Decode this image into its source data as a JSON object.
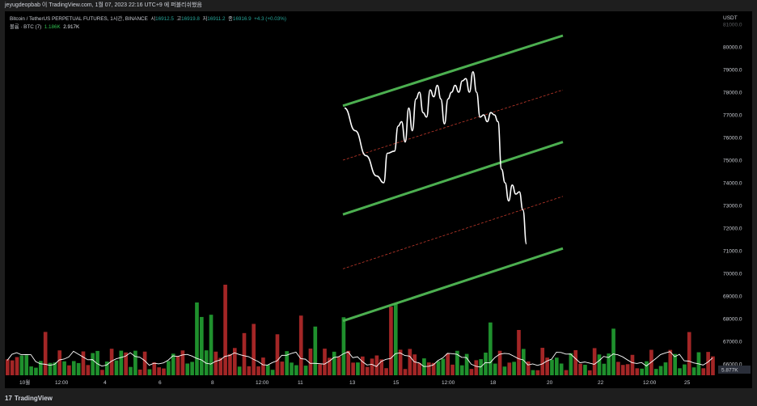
{
  "header": {
    "publisher_line": "jeyugdeopbab 이 TradingView.com, 1월 07, 2023 22:16 UTC+9 에 퍼블리쉬했음"
  },
  "legend": {
    "symbol": "Bitcoin / TetherUS PERPETUAL FUTURES, 1시간, BINANCE",
    "open_label": "시",
    "open": "16912.5",
    "high_label": "고",
    "high": "16919.8",
    "low_label": "저",
    "low": "16911.2",
    "close_label": "종",
    "close": "16916.9",
    "change": "+4.3 (+0.03%)",
    "volume_label": "볼륨 · BTC (7)",
    "volume_value": "1.186K",
    "volume_ma": "2.917K"
  },
  "footer": {
    "brand": "TradingView",
    "brand_mark": "17"
  },
  "chart_data": {
    "type": "line",
    "currency": "USDT",
    "y_ticks": [
      "81000.0",
      "80000.0",
      "79000.0",
      "78000.0",
      "77000.0",
      "76000.0",
      "75000.0",
      "74000.0",
      "73000.0",
      "72000.0",
      "71000.0",
      "70000.0",
      "69000.0",
      "68000.0",
      "67000.0",
      "66000.0"
    ],
    "y_range": [
      65500,
      81000
    ],
    "last_price_label": "5.877K",
    "x_ticks": [
      "10월",
      "12:00",
      "4",
      "6",
      "8",
      "12:00",
      "11",
      "13",
      "15",
      "12:00",
      "18",
      "20",
      "22",
      "12:00",
      "25"
    ],
    "price_line": [
      [
        0,
        77300
      ],
      [
        3,
        76300
      ],
      [
        6,
        75200
      ],
      [
        9,
        74300
      ],
      [
        11,
        74000
      ],
      [
        12,
        75300
      ],
      [
        14,
        75400
      ],
      [
        15,
        76500
      ],
      [
        16,
        76700
      ],
      [
        17,
        75800
      ],
      [
        18,
        77300
      ],
      [
        19,
        76300
      ],
      [
        20,
        77700
      ],
      [
        21,
        78000
      ],
      [
        22,
        77100
      ],
      [
        23,
        76900
      ],
      [
        24,
        78100
      ],
      [
        25,
        77800
      ],
      [
        26,
        78300
      ],
      [
        27,
        77700
      ],
      [
        28,
        76600
      ],
      [
        29,
        77700
      ],
      [
        30,
        78000
      ],
      [
        31,
        78300
      ],
      [
        32,
        78000
      ],
      [
        33,
        78500
      ],
      [
        34,
        78600
      ],
      [
        35,
        78000
      ],
      [
        36,
        78900
      ],
      [
        37,
        78000
      ],
      [
        38,
        76900
      ],
      [
        39,
        77000
      ],
      [
        40,
        76700
      ],
      [
        41,
        77100
      ],
      [
        42,
        77000
      ],
      [
        43,
        76700
      ],
      [
        44,
        74600
      ],
      [
        45,
        74000
      ],
      [
        46,
        73200
      ],
      [
        47,
        73900
      ],
      [
        48,
        73500
      ],
      [
        49,
        73600
      ],
      [
        50,
        72800
      ],
      [
        51,
        71300
      ]
    ],
    "annotations": [
      {
        "kind": "trend-line",
        "color": "#5cb85c",
        "from": [
          0,
          77400
        ],
        "to": [
          100,
          80500
        ]
      },
      {
        "kind": "dashed-line",
        "color": "#d23b3b",
        "from": [
          0,
          75000
        ],
        "to": [
          100,
          78100
        ]
      },
      {
        "kind": "trend-line",
        "color": "#5cb85c",
        "from": [
          0,
          72600
        ],
        "to": [
          100,
          75800
        ]
      },
      {
        "kind": "dashed-line",
        "color": "#d23b3b",
        "from": [
          0,
          70200
        ],
        "to": [
          100,
          73400
        ]
      },
      {
        "kind": "trend-line",
        "color": "#5cb85c",
        "from": [
          0,
          67900
        ],
        "to": [
          100,
          71100
        ]
      }
    ],
    "volume_bars_count": 150
  },
  "colors": {
    "channel": "#4caf50",
    "dashed": "#c0392b",
    "price": "#ffffff",
    "vol_up": "#22a032",
    "vol_down": "#b52a2a"
  }
}
